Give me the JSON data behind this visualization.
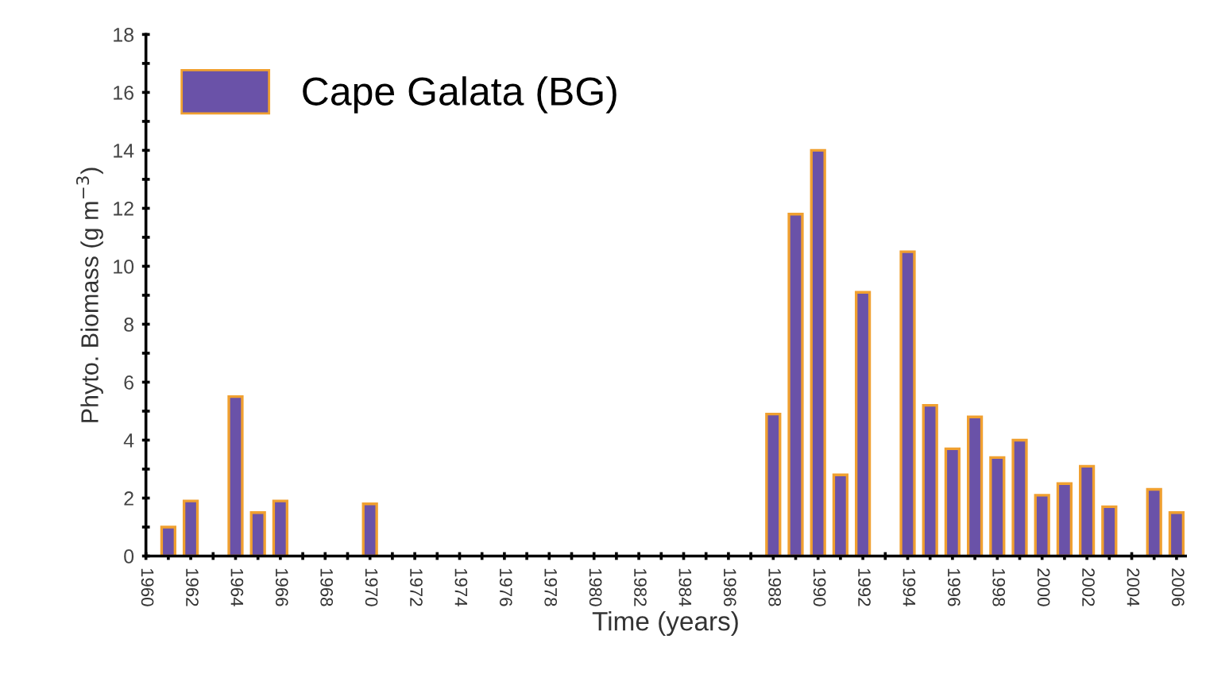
{
  "chart_data": {
    "type": "bar",
    "xlabel": "Time (years)",
    "ylabel": "Phyto. Biomass (g m$^{−3}$)",
    "x": [
      1961,
      1962,
      1964,
      1965,
      1966,
      1970,
      1988,
      1989,
      1990,
      1991,
      1992,
      1994,
      1995,
      1996,
      1997,
      1998,
      1999,
      2000,
      2001,
      2002,
      2003,
      2005,
      2006
    ],
    "series": [
      {
        "name": "Cape Galata (BG)",
        "color": "#6a52a8",
        "values": [
          1.0,
          1.9,
          5.5,
          1.5,
          1.9,
          1.8,
          4.9,
          11.8,
          14.0,
          2.8,
          9.1,
          10.5,
          5.2,
          3.7,
          4.8,
          3.4,
          4.0,
          2.1,
          2.5,
          3.1,
          1.7,
          2.3,
          1.5
        ]
      }
    ],
    "xlim": [
      1960,
      2006.4
    ],
    "xticks": [
      1960,
      {
        "value": 1961,
        "label": null
      },
      1962,
      {
        "value": 1963,
        "label": null
      },
      1964,
      {
        "value": 1965,
        "label": null
      },
      1966,
      {
        "value": 1967,
        "label": null
      },
      1968,
      {
        "value": 1969,
        "label": null
      },
      1970,
      {
        "value": 1971,
        "label": null
      },
      1972,
      {
        "value": 1973,
        "label": null
      },
      1974,
      {
        "value": 1975,
        "label": null
      },
      1976,
      {
        "value": 1977,
        "label": null
      },
      1978,
      {
        "value": 1979,
        "label": null
      },
      1980,
      {
        "value": 1981,
        "label": null
      },
      1982,
      {
        "value": 1983,
        "label": null
      },
      1984,
      {
        "value": 1985,
        "label": null
      },
      1986,
      {
        "value": 1987,
        "label": null
      },
      1988,
      {
        "value": 1989,
        "label": null
      },
      1990,
      {
        "value": 1991,
        "label": null
      },
      1992,
      {
        "value": 1993,
        "label": null
      },
      1994,
      {
        "value": 1995,
        "label": null
      },
      1996,
      {
        "value": 1997,
        "label": null
      },
      1998,
      {
        "value": 1999,
        "label": null
      },
      2000,
      {
        "value": 2001,
        "label": null
      },
      2002,
      {
        "value": 2003,
        "label": null
      },
      2004,
      {
        "value": 2005,
        "label": null
      },
      2006
    ],
    "ylim": [
      0,
      18
    ],
    "yticks": [
      0,
      {
        "value": 1,
        "label": null
      },
      2,
      {
        "value": 3,
        "label": null
      },
      4,
      {
        "value": 5,
        "label": null
      },
      6,
      {
        "value": 7,
        "label": null
      },
      8,
      {
        "value": 9,
        "label": null
      },
      10,
      {
        "value": 11,
        "label": null
      },
      12,
      {
        "value": 13,
        "label": null
      },
      14,
      {
        "value": 15,
        "label": null
      },
      16,
      {
        "value": 17,
        "label": null
      },
      18
    ],
    "legend": "top left",
    "grid": false
  }
}
